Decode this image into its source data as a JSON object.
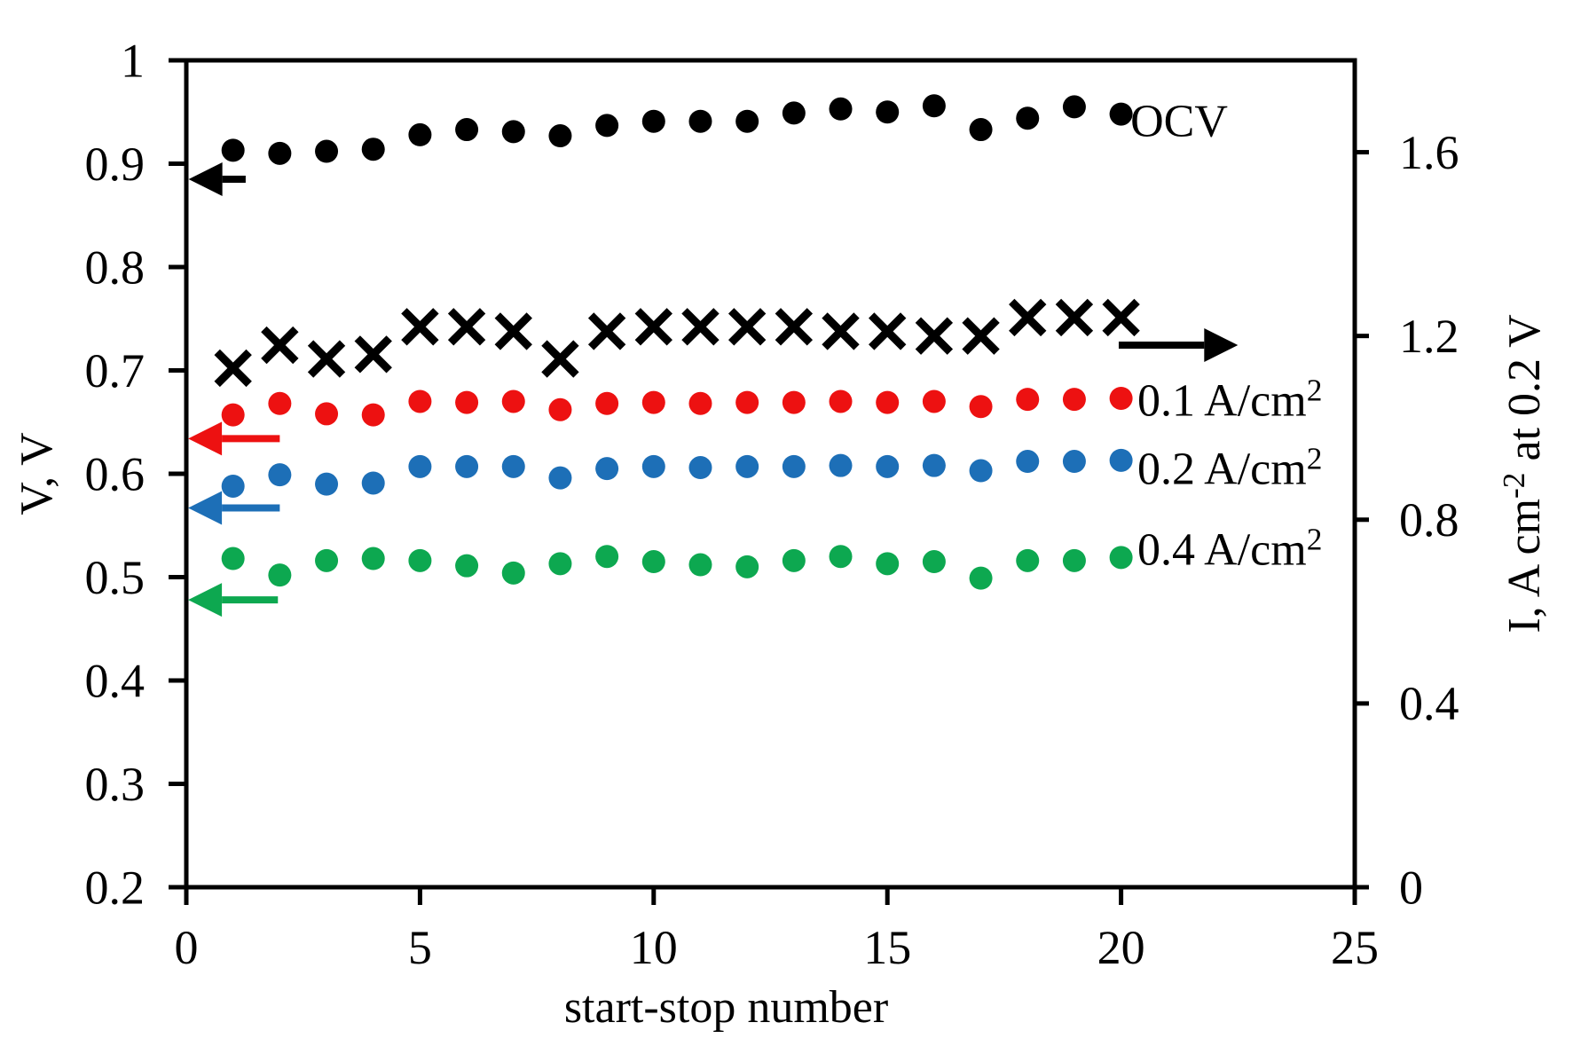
{
  "chart_data": {
    "type": "scatter",
    "xlabel": "start-stop number",
    "background": "#FFFFFF",
    "grid": false,
    "legend_position": "right-of-last-points",
    "x": [
      1,
      2,
      3,
      4,
      5,
      6,
      7,
      8,
      9,
      10,
      11,
      12,
      13,
      14,
      15,
      16,
      17,
      18,
      19,
      20
    ],
    "x_axis": {
      "min": 0,
      "max": 25,
      "ticks": [
        {
          "v": 0,
          "label": "0"
        },
        {
          "v": 5,
          "label": "5"
        },
        {
          "v": 10,
          "label": "10"
        },
        {
          "v": 15,
          "label": "15"
        },
        {
          "v": 20,
          "label": "20"
        },
        {
          "v": 25,
          "label": "25"
        }
      ]
    },
    "left_axis": {
      "label": "V, V",
      "label_parts": [
        {
          "t": "V, V"
        }
      ],
      "min": 0.2,
      "max": 1.0,
      "ticks": [
        {
          "v": 1.0,
          "label": "1"
        },
        {
          "v": 0.9,
          "label": "0.9"
        },
        {
          "v": 0.8,
          "label": "0.8"
        },
        {
          "v": 0.7,
          "label": "0.7"
        },
        {
          "v": 0.6,
          "label": "0.6"
        },
        {
          "v": 0.5,
          "label": "0.5"
        },
        {
          "v": 0.4,
          "label": "0.4"
        },
        {
          "v": 0.3,
          "label": "0.3"
        },
        {
          "v": 0.2,
          "label": "0.2"
        }
      ]
    },
    "right_axis": {
      "label": "I, A cm⁻² at 0.2 V",
      "label_parts": [
        {
          "t": "I, A cm"
        },
        {
          "t": "-2",
          "sup": true
        },
        {
          "t": " at 0.2 V"
        }
      ],
      "min": 0,
      "max": 1.8,
      "ticks": [
        {
          "v": 1.6,
          "label": "1.6"
        },
        {
          "v": 1.2,
          "label": "1.2"
        },
        {
          "v": 0.8,
          "label": "0.8"
        },
        {
          "v": 0.4,
          "label": "0.4"
        },
        {
          "v": 0.0,
          "label": "0"
        }
      ]
    },
    "series": [
      {
        "id": "ocv",
        "axis": "left",
        "marker": "circle",
        "color": "#000000",
        "label": "OCV",
        "label_parts": [
          {
            "t": "OCV"
          }
        ],
        "label_at": {
          "x": 20.2,
          "y": 0.942
        },
        "values": [
          0.913,
          0.91,
          0.912,
          0.914,
          0.928,
          0.933,
          0.931,
          0.927,
          0.937,
          0.941,
          0.941,
          0.941,
          0.949,
          0.953,
          0.95,
          0.956,
          0.933,
          0.944,
          0.955,
          0.948
        ]
      },
      {
        "id": "current-at-0p2V",
        "axis": "right",
        "marker": "x",
        "color": "#000000",
        "label": "",
        "label_parts": [],
        "values": [
          1.13,
          1.18,
          1.15,
          1.16,
          1.22,
          1.22,
          1.21,
          1.15,
          1.21,
          1.22,
          1.22,
          1.22,
          1.22,
          1.21,
          1.21,
          1.2,
          1.2,
          1.24,
          1.24,
          1.24
        ]
      },
      {
        "id": "v-at-0.1-Acm2",
        "axis": "left",
        "marker": "circle",
        "color": "#ED1111",
        "label": "0.1 A/cm²",
        "label_parts": [
          {
            "t": "0.1 A/cm"
          },
          {
            "t": "2",
            "sup": true
          }
        ],
        "label_at": {
          "x": 20.35,
          "y": 0.6715
        },
        "values": [
          0.657,
          0.668,
          0.658,
          0.657,
          0.67,
          0.669,
          0.67,
          0.662,
          0.668,
          0.669,
          0.668,
          0.669,
          0.669,
          0.67,
          0.669,
          0.67,
          0.665,
          0.672,
          0.672,
          0.673
        ]
      },
      {
        "id": "v-at-0.2-Acm2",
        "axis": "left",
        "marker": "circle",
        "color": "#1D6FB7",
        "label": "0.2 A/cm²",
        "label_parts": [
          {
            "t": "0.2 A/cm"
          },
          {
            "t": "2",
            "sup": true
          }
        ],
        "label_at": {
          "x": 20.35,
          "y": 0.6055
        },
        "values": [
          0.588,
          0.599,
          0.59,
          0.591,
          0.607,
          0.607,
          0.607,
          0.596,
          0.605,
          0.607,
          0.606,
          0.607,
          0.607,
          0.608,
          0.607,
          0.608,
          0.603,
          0.612,
          0.612,
          0.613
        ]
      },
      {
        "id": "v-at-0.4-Acm2",
        "axis": "left",
        "marker": "circle",
        "color": "#0DA850",
        "label": "0.4 A/cm²",
        "label_parts": [
          {
            "t": "0.4 A/cm"
          },
          {
            "t": "2",
            "sup": true
          }
        ],
        "label_at": {
          "x": 20.35,
          "y": 0.527
        },
        "values": [
          0.518,
          0.502,
          0.516,
          0.518,
          0.516,
          0.511,
          0.504,
          0.513,
          0.52,
          0.515,
          0.512,
          0.51,
          0.516,
          0.52,
          0.513,
          0.515,
          0.499,
          0.516,
          0.516,
          0.519
        ]
      }
    ],
    "arrows": [
      {
        "name": "ocv-axis-arrow",
        "color": "#000000",
        "axis": "left",
        "y": 0.885,
        "tail_x": 1.27,
        "tip_x": 0.05,
        "dir": "left"
      },
      {
        "name": "current-axis-arrow",
        "color": "#000000",
        "axis": "right",
        "y": 1.18,
        "tail_x": 19.95,
        "tip_x": 22.5,
        "dir": "right"
      },
      {
        "name": "red-axis-arrow",
        "color": "#ED1111",
        "axis": "left",
        "y": 0.634,
        "tail_x": 2.0,
        "tip_x": 0.04,
        "dir": "left"
      },
      {
        "name": "blue-axis-arrow",
        "color": "#1D6FB7",
        "axis": "left",
        "y": 0.567,
        "tail_x": 2.0,
        "tip_x": 0.04,
        "dir": "left"
      },
      {
        "name": "green-axis-arrow",
        "color": "#0DA850",
        "axis": "left",
        "y": 0.478,
        "tail_x": 1.96,
        "tip_x": 0.04,
        "dir": "left"
      }
    ]
  }
}
